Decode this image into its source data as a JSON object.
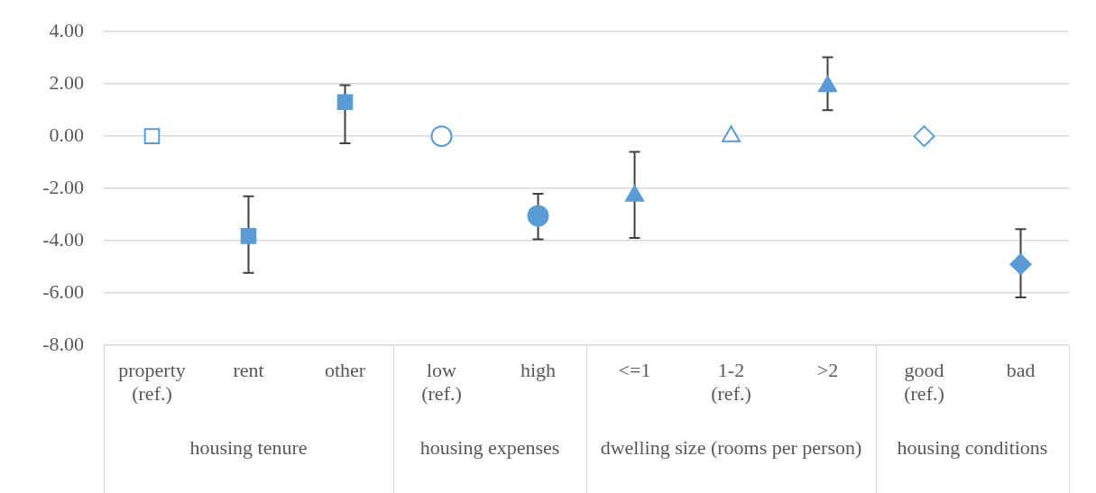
{
  "chart_data": {
    "type": "scatter",
    "categories": [
      "property (ref.)",
      "rent",
      "other",
      "low (ref.)",
      "high",
      "<=1",
      "1-2 (ref.)",
      ">2",
      "good (ref.)",
      "bad"
    ],
    "series": [
      {
        "color": "#5b9bd5",
        "marker": "square",
        "values": [
          0,
          -3.82,
          1.31,
          null,
          null,
          null,
          null,
          null,
          null,
          null
        ],
        "errors": [
          null,
          [
            -5.23,
            -2.3
          ],
          [
            -0.27,
            1.95
          ],
          null,
          null,
          null,
          null,
          null,
          null,
          null
        ]
      },
      {
        "color": "#5b9bd5",
        "marker": "circle",
        "values": [
          null,
          null,
          null,
          0,
          -3.05,
          null,
          null,
          null,
          null,
          null
        ],
        "errors": [
          null,
          null,
          null,
          null,
          [
            -3.95,
            -2.2
          ],
          null,
          null,
          null,
          null,
          null
        ]
      },
      {
        "color": "#5b9bd5",
        "marker": "triangle",
        "values": [
          null,
          null,
          null,
          null,
          null,
          -2.28,
          0,
          1.91,
          null,
          null
        ],
        "errors": [
          null,
          null,
          null,
          null,
          null,
          [
            -3.89,
            -0.6
          ],
          null,
          [
            1.0,
            3.02
          ],
          null,
          null
        ]
      },
      {
        "color": "#5b9bd5",
        "marker": "diamond",
        "values": [
          null,
          null,
          null,
          null,
          null,
          null,
          null,
          null,
          0,
          -4.9
        ],
        "errors": [
          null,
          null,
          null,
          null,
          null,
          null,
          null,
          null,
          null,
          [
            -6.17,
            -3.56
          ]
        ]
      }
    ],
    "ylim": [
      -8,
      4
    ],
    "yticks": [
      {
        "value": -8,
        "label": "-8.00"
      },
      {
        "value": -6,
        "label": "-6.00"
      },
      {
        "value": -4,
        "label": "-4.00"
      },
      {
        "value": -2,
        "label": "-2.00"
      },
      {
        "value": 0,
        "label": "0.00"
      },
      {
        "value": 2,
        "label": "2.00"
      },
      {
        "value": 4,
        "label": "4.00"
      }
    ],
    "grid": "y",
    "annotations": [
      "housing tenure",
      "housing expenses",
      "dwelling size (rooms per person)",
      "housing conditions"
    ]
  }
}
